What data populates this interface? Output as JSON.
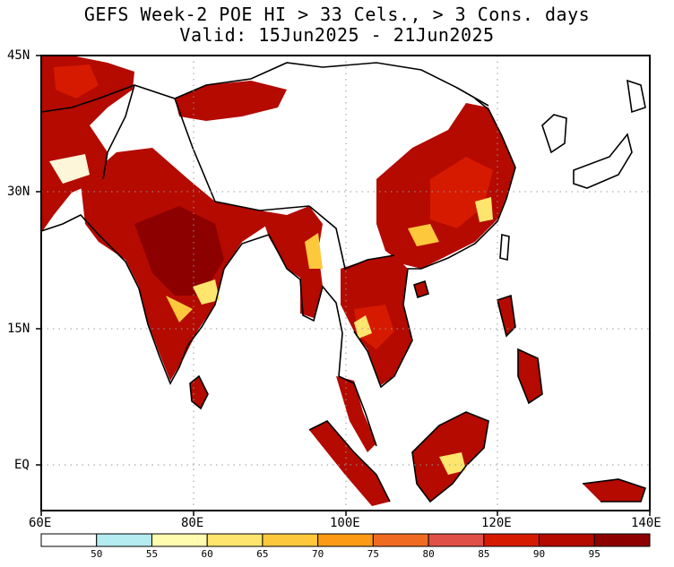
{
  "title": {
    "line1": "GEFS Week-2 POE HI > 33 Cels., > 3 Cons. days",
    "line2": "Valid: 15Jun2025 - 21Jun2025"
  },
  "map": {
    "lon_labels": [
      "60E",
      "80E",
      "100E",
      "120E",
      "140E"
    ],
    "lat_labels": [
      "45N",
      "30N",
      "15N",
      "EQ"
    ],
    "lon_range": [
      60,
      140
    ],
    "lat_range": [
      -5,
      45
    ],
    "grid": "dotted at 15° latitude and 20° longitude"
  },
  "colorbar": {
    "levels": [
      "50",
      "55",
      "60",
      "65",
      "70",
      "75",
      "80",
      "85",
      "90",
      "95"
    ],
    "colors": [
      "#ffffff",
      "#b4ecf2",
      "#fffcb0",
      "#fde56e",
      "#fdc83c",
      "#fc9a16",
      "#f06a22",
      "#e05048",
      "#d61a00",
      "#b40a00",
      "#8c0000"
    ]
  }
}
